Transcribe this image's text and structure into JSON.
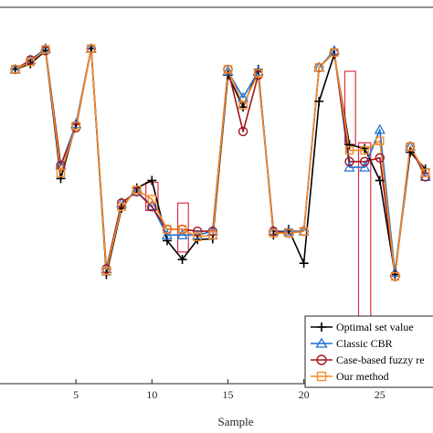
{
  "chart_data": {
    "type": "line",
    "xlabel": "Sample",
    "xlim": [
      0,
      28.5
    ],
    "ylim": [
      0,
      100
    ],
    "xticks": [
      5,
      10,
      15,
      20,
      25
    ],
    "x": [
      1,
      2,
      3,
      4,
      5,
      6,
      7,
      8,
      9,
      10,
      11,
      12,
      13,
      14,
      15,
      16,
      17,
      18,
      19,
      20,
      21,
      22,
      23,
      24,
      25,
      26,
      27,
      28
    ],
    "series": [
      {
        "name": "Optimal set value",
        "color": "#000000",
        "marker": "plus",
        "values": [
          83.5,
          85.0,
          88.5,
          54.5,
          69.0,
          89.0,
          29.0,
          46.6,
          52.0,
          54.0,
          38.0,
          33.0,
          38.3,
          38.5,
          82.0,
          73.5,
          83.5,
          39.5,
          41.0,
          32.0,
          75.0,
          87.5,
          63.5,
          62.5,
          54.0,
          29.0,
          61.5,
          57.0
        ]
      },
      {
        "name": "Classic CBR",
        "color": "#1f6fd1",
        "marker": "triangle",
        "values": [
          83.5,
          86.0,
          89.0,
          58.0,
          69.0,
          89.0,
          30.5,
          48.0,
          51.0,
          47.2,
          39.5,
          39.5,
          39.5,
          40.5,
          83.0,
          76.0,
          83.0,
          40.5,
          40.5,
          40.5,
          84.0,
          88.5,
          57.5,
          57.5,
          67.5,
          29.5,
          63.0,
          55.0
        ]
      },
      {
        "name": "Case-based fuzzy reasoning",
        "color": "#a0141e",
        "marker": "circle",
        "values": [
          83.5,
          86.0,
          88.5,
          58.0,
          68.0,
          89.0,
          30.5,
          48.0,
          51.0,
          47.0,
          41.0,
          41.0,
          40.5,
          40.5,
          83.5,
          67.0,
          82.0,
          40.5,
          40.0,
          40.5,
          84.0,
          88.0,
          59.0,
          59.0,
          60.0,
          28.5,
          63.0,
          55.0
        ]
      },
      {
        "name": "Our method",
        "color": "#f28c28",
        "marker": "square",
        "values": [
          83.5,
          85.5,
          88.8,
          56.0,
          68.5,
          89.0,
          30.0,
          47.0,
          51.5,
          49.0,
          41.0,
          41.0,
          39.0,
          39.5,
          83.5,
          74.0,
          82.5,
          40.0,
          40.0,
          40.5,
          84.0,
          88.0,
          62.0,
          62.0,
          64.5,
          28.5,
          63.0,
          56.0
        ]
      }
    ],
    "highlight_boxes": [
      {
        "x_from": 9.6,
        "x_to": 10.4,
        "y_from": 0.46,
        "y_to": 0.535
      },
      {
        "x_from": 11.7,
        "x_to": 12.4,
        "y_from": 0.35,
        "y_to": 0.48
      },
      {
        "x_from": 22.7,
        "x_to": 23.4,
        "y_from": 0.635,
        "y_to": 0.83
      },
      {
        "x_from": 23.6,
        "x_to": 24.4,
        "y_from": 0.1,
        "y_to": 0.64
      }
    ],
    "legend_placement": "bottom-right",
    "grid": false
  },
  "legend": {
    "items": [
      {
        "label": "Optimal set value"
      },
      {
        "label": "Classic CBR"
      },
      {
        "label": "Case-based fuzzy re"
      },
      {
        "label": "Our method"
      }
    ]
  },
  "axes": {
    "xlabel": "Sample",
    "xtick_labels": [
      "5",
      "10",
      "15",
      "20",
      "25"
    ]
  },
  "colors": {
    "highlight": "#e0304a"
  }
}
